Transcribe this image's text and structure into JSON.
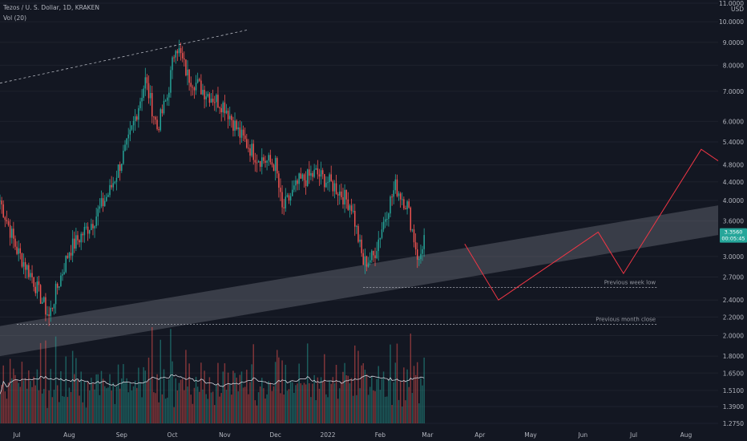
{
  "header": {
    "symbol_line": "Tezos / U. S. Dollar, 1D, KRAKEN",
    "volume_line": "Vol (20)"
  },
  "chart_data": {
    "type": "candlestick",
    "currency": "USD",
    "scale": "log",
    "ylim": [
      1.275,
      11.0
    ],
    "price_ticks": [
      "11.0000",
      "10.0000",
      "9.0000",
      "8.0000",
      "7.0000",
      "6.0000",
      "5.4000",
      "4.8000",
      "4.4000",
      "4.0000",
      "3.6000",
      "3.0000",
      "2.7000",
      "2.4000",
      "2.2000",
      "2.0000",
      "1.8000",
      "1.6500",
      "1.5100",
      "1.3900",
      "1.2750"
    ],
    "time_ticks": [
      "Jul",
      "Aug",
      "Sep",
      "Oct",
      "Nov",
      "Dec",
      "2022",
      "Feb",
      "Mar",
      "Apr",
      "May",
      "Jun",
      "Jul",
      "Aug"
    ],
    "last_price_badge": "3.3560",
    "last_price_badge_sub": "00:05:45",
    "anchors": [
      {
        "date": "2021-06-21",
        "close": 4.0
      },
      {
        "date": "2021-07-01",
        "close": 3.1
      },
      {
        "date": "2021-07-10",
        "close": 2.7
      },
      {
        "date": "2021-07-20",
        "close": 2.2
      },
      {
        "date": "2021-07-24",
        "close": 2.5
      },
      {
        "date": "2021-08-01",
        "close": 3.1
      },
      {
        "date": "2021-08-15",
        "close": 3.6
      },
      {
        "date": "2021-08-25",
        "close": 4.2
      },
      {
        "date": "2021-09-05",
        "close": 5.4
      },
      {
        "date": "2021-09-15",
        "close": 7.4
      },
      {
        "date": "2021-09-22",
        "close": 5.8
      },
      {
        "date": "2021-09-28",
        "close": 6.8
      },
      {
        "date": "2021-10-03",
        "close": 9.0
      },
      {
        "date": "2021-10-10",
        "close": 7.6
      },
      {
        "date": "2021-10-20",
        "close": 7.0
      },
      {
        "date": "2021-11-01",
        "close": 6.5
      },
      {
        "date": "2021-11-10",
        "close": 5.6
      },
      {
        "date": "2021-11-20",
        "close": 5.0
      },
      {
        "date": "2021-12-01",
        "close": 4.8
      },
      {
        "date": "2021-12-05",
        "close": 3.8
      },
      {
        "date": "2021-12-15",
        "close": 4.4
      },
      {
        "date": "2021-12-25",
        "close": 4.6
      },
      {
        "date": "2022-01-05",
        "close": 4.3
      },
      {
        "date": "2022-01-15",
        "close": 3.9
      },
      {
        "date": "2022-01-22",
        "close": 2.9
      },
      {
        "date": "2022-01-28",
        "close": 3.0
      },
      {
        "date": "2022-02-05",
        "close": 3.8
      },
      {
        "date": "2022-02-10",
        "close": 4.3
      },
      {
        "date": "2022-02-17",
        "close": 3.9
      },
      {
        "date": "2022-02-24",
        "close": 2.9
      },
      {
        "date": "2022-02-27",
        "close": 3.35
      }
    ],
    "projection": [
      {
        "date": "2022-03-23",
        "price": 3.2
      },
      {
        "date": "2022-04-12",
        "price": 2.4
      },
      {
        "date": "2022-06-10",
        "price": 3.4
      },
      {
        "date": "2022-06-25",
        "price": 2.75
      },
      {
        "date": "2022-08-10",
        "price": 5.2
      },
      {
        "date": "2022-08-20",
        "price": 4.9
      }
    ],
    "support_channel": [
      {
        "date": "2021-06-21",
        "price_low": 1.8,
        "price_high": 2.1
      },
      {
        "date": "2022-08-20",
        "price_low": 3.35,
        "price_high": 3.9
      }
    ],
    "resistance_line": [
      {
        "date": "2021-06-21",
        "price": 7.3
      },
      {
        "date": "2021-11-15",
        "price": 9.6
      }
    ],
    "levels": [
      {
        "label": "Previous week low",
        "price": 2.56,
        "from": "2022-01-22",
        "to": "2022-07-15"
      },
      {
        "label": "Previous month close",
        "price": 2.12,
        "from": "2021-07-01",
        "to": "2022-07-15"
      }
    ]
  },
  "colors": {
    "background": "#131722",
    "up": "#26a69a",
    "down": "#ef5350",
    "volume_ma": "#d1d4dc",
    "projection": "#f23645",
    "channel": "#787b86",
    "badge_bg": "#ffffff",
    "badge_fg": "#26a69a"
  }
}
